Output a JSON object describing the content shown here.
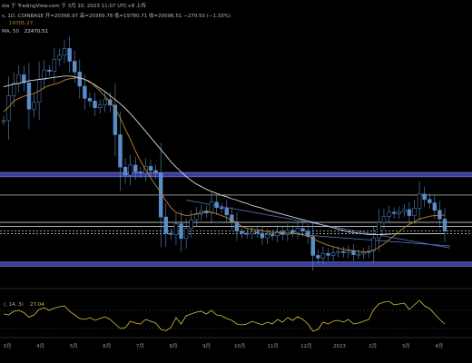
{
  "header": {
    "line1_prefix": "dia 于 TradingView.com 于 3月 10, 2023 11:07 UTC+8 上传",
    "line2": "s, 1D, COINBASE  开=20366.97  高=20369.78  低=19780.71  收=20096.51  −270.50 (−1.33%)",
    "ma1_value": "19705.27",
    "ma2_label": "MA, 50",
    "ma2_value": "22470.51",
    "rsi_label": "(, 14, 3)",
    "rsi_value": "27.04"
  },
  "colors": {
    "background": "#000000",
    "candle": "#5a8dc9",
    "ma_orange": "#b8862e",
    "ma_white": "#d8d8d8",
    "band_blue": "#3a3d9e",
    "rsi": "#d7c243",
    "level_white": "#e6e6e6",
    "trend_blue": "#5b7fd0"
  },
  "chart_data": {
    "type": "candlestick",
    "x_ticks": [
      "3月",
      "4月",
      "5月",
      "6月",
      "7月",
      "8月",
      "9月",
      "10月",
      "11月",
      "12月",
      "2023",
      "2月",
      "3月",
      "4月"
    ],
    "horizontal_levels": [
      25450,
      21400,
      20800,
      20100,
      19700
    ],
    "blue_bands": [
      [
        28800,
        28150
      ],
      [
        15500,
        14900
      ]
    ],
    "price_series": [
      36500,
      40200,
      42000,
      43300,
      42100,
      38200,
      39200,
      42600,
      44000,
      43800,
      45600,
      46200,
      47200,
      45300,
      43700,
      41600,
      39800,
      39400,
      38400,
      38800,
      39600,
      38800,
      34400,
      29600,
      28400,
      29900,
      28900,
      28700,
      29700,
      29100,
      28700,
      22200,
      19800,
      19600,
      21200,
      19000,
      20500,
      21800,
      22600,
      23100,
      22800,
      24400,
      23600,
      23500,
      22500,
      21500,
      20100,
      19800,
      19700,
      20000,
      19800,
      19100,
      19600,
      19400,
      20000,
      19600,
      20200,
      19900,
      20500,
      20100,
      19300,
      16500,
      16100,
      16800,
      16500,
      16900,
      17100,
      16900,
      17200,
      16600,
      16700,
      16900,
      17200,
      19100,
      21400,
      22300,
      22900,
      22700,
      23000,
      23300,
      22400,
      23500,
      25600,
      24800,
      24300,
      23200,
      21900,
      20100
    ],
    "orange_ma": [
      37800,
      38500,
      39400,
      39800,
      40100,
      40300,
      40500,
      40900,
      41400,
      41700,
      41900,
      42100,
      42500,
      42700,
      42800,
      42900,
      42600,
      42300,
      41600,
      40900,
      40100,
      39200,
      38300,
      36900,
      35200,
      33700,
      32000,
      30500,
      29200,
      28000,
      26900,
      25800,
      24600,
      23600,
      22900,
      22600,
      22400,
      22500,
      22700,
      22800,
      23000,
      22900,
      22700,
      22400,
      22100,
      21700,
      21300,
      20800,
      20500,
      20400,
      20300,
      20200,
      20000,
      19900,
      19900,
      19800,
      19800,
      19800,
      19700,
      19600,
      19400,
      19000,
      18600,
      18300,
      18000,
      17800,
      17600,
      17400,
      17300,
      17200,
      17100,
      17000,
      17000,
      17300,
      17700,
      18200,
      18800,
      19400,
      20000,
      20600,
      21100,
      21500,
      21900,
      22100,
      22300,
      22400,
      22450,
      22470
    ],
    "white_ma": [
      41500,
      41700,
      41900,
      42000,
      42200,
      42400,
      42500,
      42600,
      42700,
      42800,
      42900,
      43000,
      43100,
      43100,
      43000,
      42800,
      42600,
      42200,
      41800,
      41300,
      40800,
      40200,
      39600,
      39000,
      38300,
      37500,
      36700,
      35800,
      34900,
      34000,
      33100,
      32200,
      31300,
      30400,
      29600,
      28900,
      28200,
      27600,
      27100,
      26700,
      26300,
      26000,
      25700,
      25400,
      25200,
      24900,
      24700,
      24400,
      24200,
      23900,
      23700,
      23500,
      23200,
      23000,
      22800,
      22600,
      22400,
      22200,
      22000,
      21800,
      21600,
      21400,
      21200,
      21000,
      20800,
      20600,
      20400,
      20200,
      20000,
      19900,
      19800,
      19700,
      19600,
      19600,
      19600,
      19600,
      19650,
      19700,
      19700,
      19700,
      19710,
      19710,
      19705,
      19705,
      19705,
      19705,
      19705,
      19705
    ],
    "trendlines": [
      {
        "from_index": 36,
        "from_value": 24700,
        "to_index": 88,
        "to_value": 17600
      },
      {
        "from_index": 58,
        "from_value": 19600,
        "to_index": 88,
        "to_value": 17900
      }
    ],
    "rsi_values": [
      52,
      50,
      58,
      60,
      55,
      45,
      50,
      62,
      66,
      60,
      65,
      68,
      70,
      58,
      50,
      42,
      40,
      44,
      38,
      42,
      46,
      40,
      30,
      20,
      22,
      36,
      32,
      30,
      40,
      36,
      32,
      18,
      15,
      22,
      44,
      30,
      48,
      52,
      56,
      58,
      52,
      60,
      50,
      48,
      42,
      38,
      30,
      28,
      30,
      36,
      32,
      28,
      34,
      30,
      40,
      34,
      44,
      38,
      46,
      40,
      30,
      14,
      18,
      34,
      30,
      36,
      38,
      34,
      40,
      30,
      32,
      36,
      40,
      62,
      74,
      78,
      80,
      72,
      74,
      76,
      62,
      72,
      82,
      70,
      64,
      52,
      40,
      30
    ],
    "rsi_range": [
      0,
      100
    ]
  }
}
